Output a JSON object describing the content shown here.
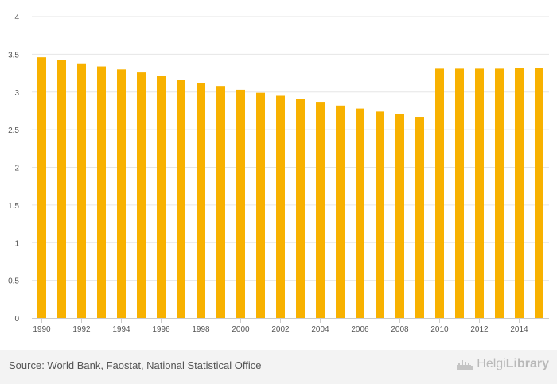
{
  "chart_data": {
    "type": "bar",
    "categories": [
      "1990",
      "1991",
      "1992",
      "1993",
      "1994",
      "1995",
      "1996",
      "1997",
      "1998",
      "1999",
      "2000",
      "2001",
      "2002",
      "2003",
      "2004",
      "2005",
      "2006",
      "2007",
      "2008",
      "2009",
      "2010",
      "2011",
      "2012",
      "2013",
      "2014",
      "2015"
    ],
    "x_tick_labels": [
      "1990",
      "1992",
      "1994",
      "1996",
      "1998",
      "2000",
      "2002",
      "2004",
      "2006",
      "2008",
      "2010",
      "2012",
      "2014"
    ],
    "values": [
      3.46,
      3.42,
      3.38,
      3.34,
      3.3,
      3.26,
      3.21,
      3.16,
      3.12,
      3.08,
      3.03,
      2.99,
      2.95,
      2.91,
      2.87,
      2.82,
      2.78,
      2.74,
      2.71,
      2.67,
      3.31,
      3.31,
      3.31,
      3.31,
      3.32,
      3.32
    ],
    "y_ticks": [
      "0",
      "0.5",
      "1",
      "1.5",
      "2",
      "2.5",
      "3",
      "3.5",
      "4"
    ],
    "ylim": [
      0,
      4
    ],
    "bar_color": "#f8b100",
    "grid": true,
    "title": "",
    "xlabel": "",
    "ylabel": ""
  },
  "footer": {
    "source": "Source: World Bank, Faostat, National Statistical Office",
    "logo_text_regular": "Helgi",
    "logo_text_bold": "Library"
  }
}
